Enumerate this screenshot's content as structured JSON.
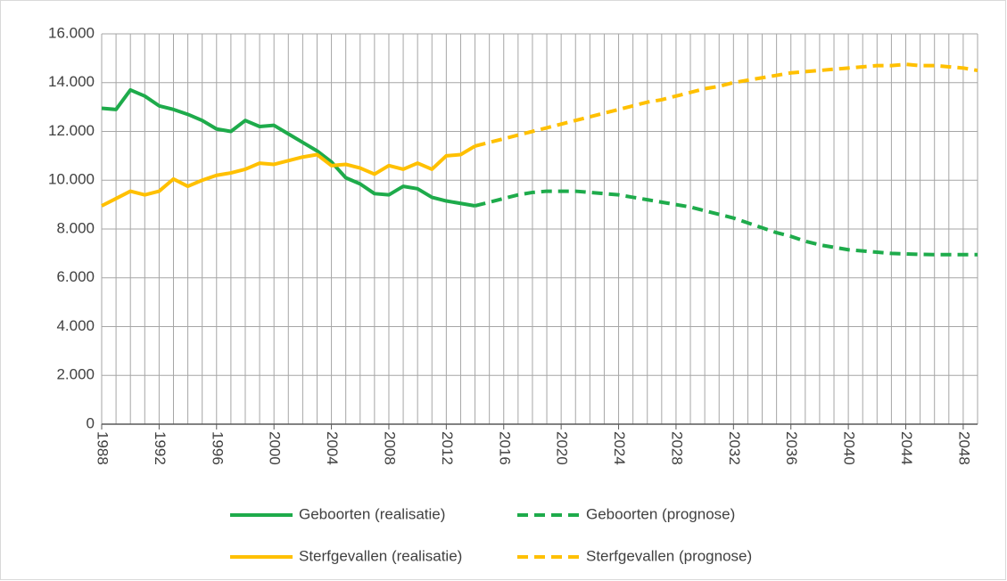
{
  "chart_data": {
    "type": "line",
    "x": [
      1988,
      1989,
      1990,
      1991,
      1992,
      1993,
      1994,
      1995,
      1996,
      1997,
      1998,
      1999,
      2000,
      2001,
      2002,
      2003,
      2004,
      2005,
      2006,
      2007,
      2008,
      2009,
      2010,
      2011,
      2012,
      2013,
      2014,
      2015,
      2016,
      2017,
      2018,
      2019,
      2020,
      2021,
      2022,
      2023,
      2024,
      2025,
      2026,
      2027,
      2028,
      2029,
      2030,
      2031,
      2032,
      2033,
      2034,
      2035,
      2036,
      2037,
      2038,
      2039,
      2040,
      2041,
      2042,
      2043,
      2044,
      2045,
      2046,
      2047,
      2048,
      2049
    ],
    "xlim": [
      1988,
      2049
    ],
    "xticks": [
      1988,
      1992,
      1996,
      2000,
      2004,
      2008,
      2012,
      2016,
      2020,
      2024,
      2028,
      2032,
      2036,
      2040,
      2044,
      2048
    ],
    "ylim": [
      0,
      16000
    ],
    "yticks": [
      0,
      {
        "value": 2000,
        "label": "2.000"
      },
      {
        "value": 4000,
        "label": "4.000"
      },
      {
        "value": 6000,
        "label": "6.000"
      },
      {
        "value": 8000,
        "label": "8.000"
      },
      {
        "value": 10000,
        "label": "10.000"
      },
      {
        "value": 12000,
        "label": "12.000"
      },
      {
        "value": 14000,
        "label": "14.000"
      },
      {
        "value": 16000,
        "label": "16.000"
      }
    ],
    "grid": true,
    "legend": "bottom",
    "series": [
      {
        "name": "Geboorten (realisatie)",
        "color": "#1eab4b",
        "dash": false,
        "values": [
          12950,
          12900,
          13700,
          13450,
          13050,
          12900,
          12700,
          12450,
          12100,
          12000,
          12450,
          12200,
          12250,
          11900,
          11550,
          11200,
          10750,
          10100,
          9850,
          9450,
          9400,
          9750,
          9650,
          9300,
          9150,
          9050,
          8950,
          null,
          null,
          null,
          null,
          null,
          null,
          null,
          null,
          null,
          null,
          null,
          null,
          null,
          null,
          null,
          null,
          null,
          null,
          null,
          null,
          null,
          null,
          null,
          null,
          null,
          null,
          null,
          null,
          null,
          null,
          null,
          null,
          null,
          null,
          null
        ]
      },
      {
        "name": "Geboorten (prognose)",
        "color": "#1eab4b",
        "dash": true,
        "values": [
          null,
          null,
          null,
          null,
          null,
          null,
          null,
          null,
          null,
          null,
          null,
          null,
          null,
          null,
          null,
          null,
          null,
          null,
          null,
          null,
          null,
          null,
          null,
          null,
          null,
          null,
          8950,
          9100,
          9250,
          9400,
          9500,
          9550,
          9550,
          9550,
          9500,
          9450,
          9400,
          9300,
          9200,
          9100,
          9000,
          8900,
          8750,
          8600,
          8450,
          8250,
          8050,
          7850,
          7700,
          7500,
          7350,
          7250,
          7150,
          7100,
          7050,
          7000,
          6980,
          6960,
          6950,
          6950,
          6950,
          6950
        ]
      },
      {
        "name": "Sterfgevallen (realisatie)",
        "color": "#ffc000",
        "dash": false,
        "values": [
          8950,
          9250,
          9550,
          9400,
          9550,
          10050,
          9750,
          10000,
          10200,
          10300,
          10450,
          10700,
          10650,
          10800,
          10950,
          11050,
          10600,
          10650,
          10500,
          10250,
          10600,
          10450,
          10700,
          10450,
          11000,
          11050,
          11400,
          null,
          null,
          null,
          null,
          null,
          null,
          null,
          null,
          null,
          null,
          null,
          null,
          null,
          null,
          null,
          null,
          null,
          null,
          null,
          null,
          null,
          null,
          null,
          null,
          null,
          null,
          null,
          null,
          null,
          null,
          null,
          null,
          null,
          null,
          null
        ]
      },
      {
        "name": "Sterfgevallen (prognose)",
        "color": "#ffc000",
        "dash": true,
        "values": [
          null,
          null,
          null,
          null,
          null,
          null,
          null,
          null,
          null,
          null,
          null,
          null,
          null,
          null,
          null,
          null,
          null,
          null,
          null,
          null,
          null,
          null,
          null,
          null,
          null,
          null,
          11400,
          11550,
          11700,
          11850,
          12000,
          12150,
          12300,
          12450,
          12600,
          12750,
          12900,
          13050,
          13200,
          13300,
          13450,
          13600,
          13750,
          13850,
          14000,
          14100,
          14200,
          14300,
          14400,
          14450,
          14500,
          14550,
          14600,
          14650,
          14700,
          14700,
          14750,
          14700,
          14700,
          14650,
          14600,
          14500
        ]
      }
    ]
  }
}
